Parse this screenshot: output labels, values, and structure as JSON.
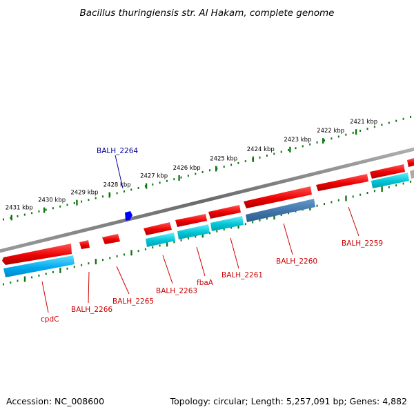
{
  "title": "Bacillus thuringiensis str. Al Hakam, complete genome",
  "footer": {
    "accession": "Accession: NC_008600",
    "summary": "Topology: circular; Length: 5,257,091 bp; Genes: 4,882"
  },
  "colors": {
    "forward": "#ff0000",
    "reverse": "#00ccdd",
    "highlight": "#5588bb",
    "backbone": "#808080",
    "ticks": "#117711",
    "label_red": "#cc0000",
    "label_blue": "#000099",
    "feature": "#0000ff"
  },
  "ruler": {
    "labels": [
      "2421 kbp",
      "2422 kbp",
      "2423 kbp",
      "2424 kbp",
      "2425 kbp",
      "2426 kbp",
      "2427 kbp",
      "2428 kbp",
      "2429 kbp",
      "2430 kbp",
      "2431 kbp"
    ]
  },
  "features": [
    {
      "name": "BALH_2264",
      "kind": "other"
    }
  ],
  "genes": [
    {
      "name": "BALH_2259",
      "strand": "forward"
    },
    {
      "name": "BALH_2260",
      "strand": "reverse"
    },
    {
      "name": "BALH_2261",
      "strand": "reverse"
    },
    {
      "name": "fbaA",
      "strand": "reverse"
    },
    {
      "name": "BALH_2263",
      "strand": "reverse"
    },
    {
      "name": "BALH_2265",
      "strand": "forward"
    },
    {
      "name": "BALH_2266",
      "strand": "forward"
    },
    {
      "name": "cpdC",
      "strand": "reverse"
    }
  ]
}
